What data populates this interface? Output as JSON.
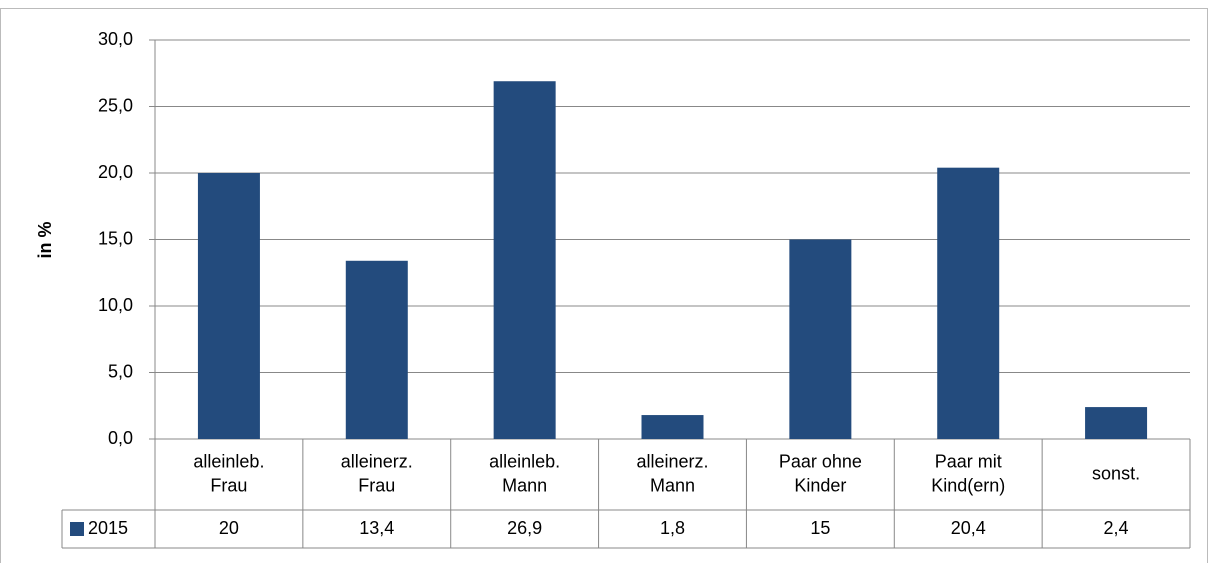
{
  "chart_data": {
    "type": "bar",
    "y_label": "in %",
    "categories": [
      "alleinleb.\nFrau",
      "alleinerz.\nFrau",
      "alleinleb.\nMann",
      "alleinerz.\nMann",
      "Paar ohne\nKinder",
      "Paar mit\nKind(ern)",
      "sonst."
    ],
    "series": [
      {
        "name": "2015",
        "color": "#234b7d",
        "values": [
          20,
          13.4,
          26.9,
          1.8,
          15,
          20.4,
          2.4
        ],
        "value_labels": [
          "20",
          "13,4",
          "26,9",
          "1,8",
          "15",
          "20,4",
          "2,4"
        ]
      }
    ],
    "ylim": [
      0,
      30
    ],
    "yticks": [
      {
        "value": 0,
        "label": "0,0"
      },
      {
        "value": 5,
        "label": "5,0"
      },
      {
        "value": 10,
        "label": "10,0"
      },
      {
        "value": 15,
        "label": "15,0"
      },
      {
        "value": 20,
        "label": "20,0"
      },
      {
        "value": 25,
        "label": "25,0"
      },
      {
        "value": 30,
        "label": "30,0"
      }
    ],
    "grid": true
  }
}
